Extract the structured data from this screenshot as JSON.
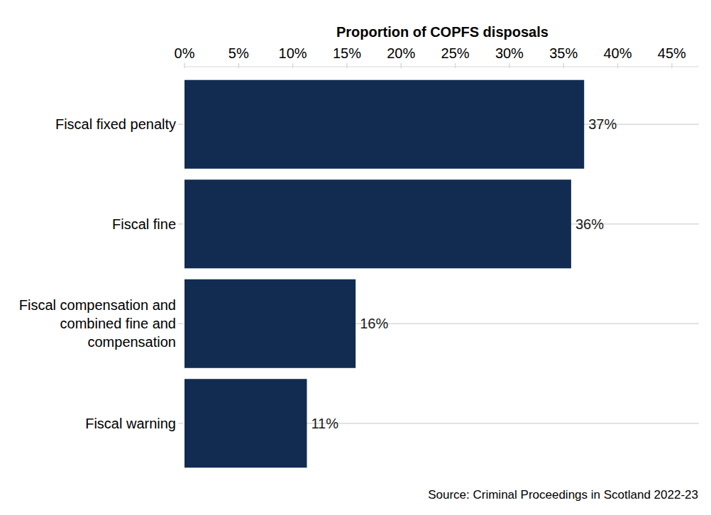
{
  "chart_data": {
    "type": "bar",
    "orientation": "horizontal",
    "x_label": "Proportion of COPFS disposals",
    "categories": [
      "Fiscal fixed penalty",
      "Fiscal fine",
      "Fiscal compensation and combined fine and compensation",
      "Fiscal warning"
    ],
    "values": [
      36.9,
      35.7,
      15.8,
      11.3
    ],
    "value_labels": [
      "37%",
      "36%",
      "16%",
      "11%"
    ],
    "data_labels": true,
    "color": "#112c50",
    "xlim": [
      0,
      47.5
    ],
    "xticks": [
      {
        "value": 0,
        "label": "0%"
      },
      {
        "value": 5,
        "label": "5%"
      },
      {
        "value": 10,
        "label": "10%"
      },
      {
        "value": 15,
        "label": "15%"
      },
      {
        "value": 20,
        "label": "20%"
      },
      {
        "value": 25,
        "label": "25%"
      },
      {
        "value": 30,
        "label": "30%"
      },
      {
        "value": 35,
        "label": "35%"
      },
      {
        "value": 40,
        "label": "40%"
      },
      {
        "value": 45,
        "label": "45%"
      }
    ],
    "grid": true,
    "source": "Source: Criminal Proceedings in Scotland 2022-23"
  }
}
